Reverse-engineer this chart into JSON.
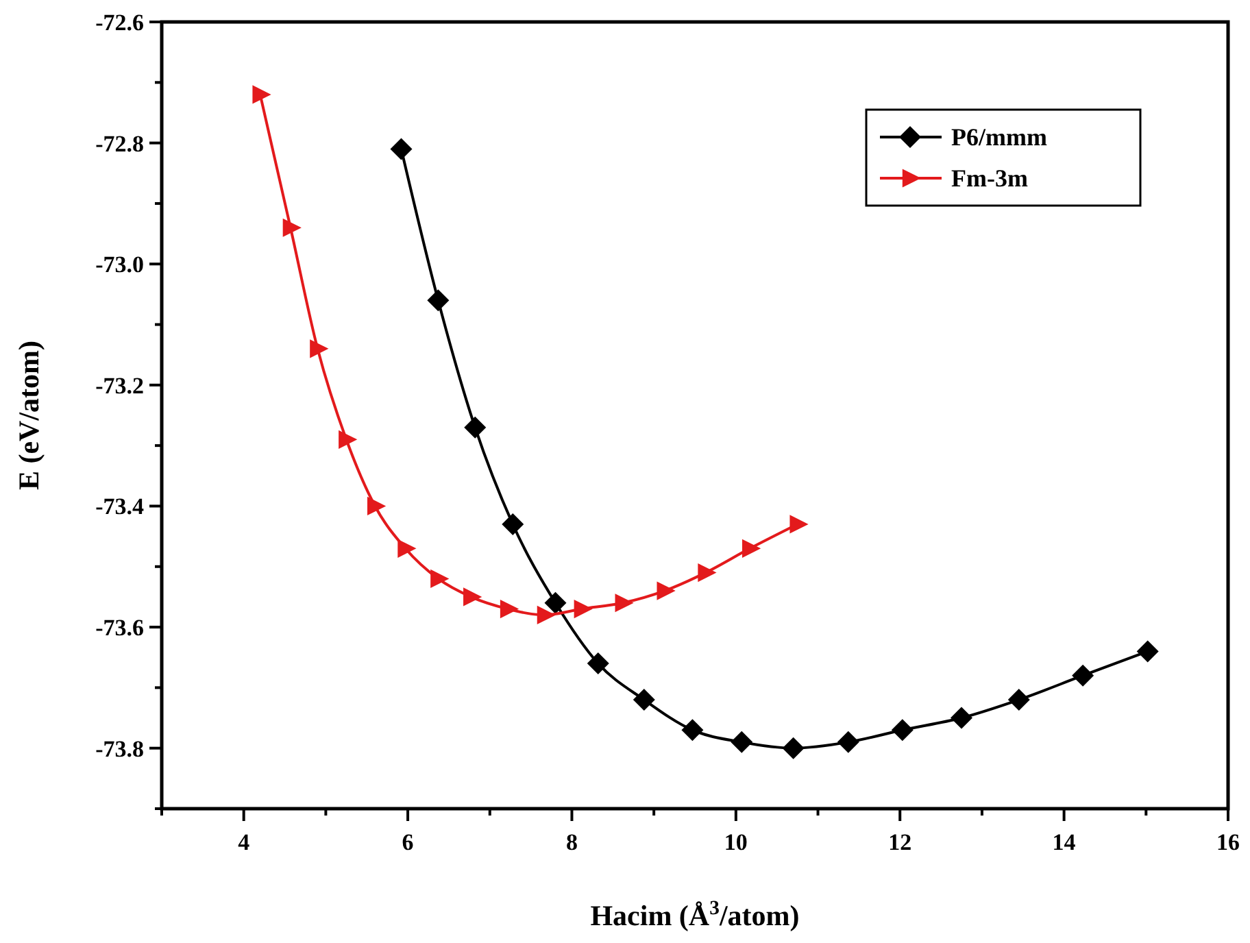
{
  "chart_data": {
    "type": "line",
    "xlabel": "Hacim (Å$^{3}$/atom)",
    "ylabel": "E (eV/atom)",
    "xlim": [
      3,
      16
    ],
    "xticks": [
      {
        "value": 3,
        "label": null
      },
      4,
      {
        "value": 5,
        "label": null
      },
      6,
      {
        "value": 7,
        "label": null
      },
      8,
      {
        "value": 9,
        "label": null
      },
      10,
      {
        "value": 11,
        "label": null
      },
      12,
      {
        "value": 13,
        "label": null
      },
      14,
      {
        "value": 15,
        "label": null
      },
      16
    ],
    "ylim": [
      -73.9,
      -72.6
    ],
    "yticks": [
      {
        "value": -73.9,
        "label": null
      },
      {
        "value": -73.8,
        "label": "-73.8"
      },
      {
        "value": -73.7,
        "label": null
      },
      {
        "value": -73.6,
        "label": "-73.6"
      },
      {
        "value": -73.5,
        "label": null
      },
      {
        "value": -73.4,
        "label": "-73.4"
      },
      {
        "value": -73.3,
        "label": null
      },
      {
        "value": -73.2,
        "label": "-73.2"
      },
      {
        "value": -73.1,
        "label": null
      },
      {
        "value": -73.0,
        "label": "-73.0"
      },
      {
        "value": -72.9,
        "label": null
      },
      {
        "value": -72.8,
        "label": "-72.8"
      },
      {
        "value": -72.7,
        "label": null
      },
      {
        "value": -72.6,
        "label": "-72.6"
      }
    ],
    "grid": false,
    "legend": "top right",
    "line_style": "solid",
    "series": [
      {
        "name": "P6/mmm",
        "color": "#000000",
        "marker": "diamond",
        "x": [
          5.92,
          6.37,
          6.82,
          7.28,
          7.8,
          8.32,
          8.88,
          9.47,
          10.07,
          10.7,
          11.37,
          12.03,
          12.75,
          13.45,
          14.23,
          15.02
        ],
        "values": [
          -72.81,
          -73.06,
          -73.27,
          -73.43,
          -73.56,
          -73.66,
          -73.72,
          -73.77,
          -73.79,
          -73.8,
          -73.79,
          -73.77,
          -73.75,
          -73.72,
          -73.68,
          -73.64
        ]
      },
      {
        "name": "Fm-3m",
        "color": "#e31a1c",
        "marker": "triangle",
        "x": [
          4.2,
          4.57,
          4.9,
          5.25,
          5.6,
          5.97,
          6.37,
          6.77,
          7.22,
          7.67,
          8.12,
          8.62,
          9.13,
          9.63,
          10.17,
          10.75
        ],
        "values": [
          -72.72,
          -72.94,
          -73.14,
          -73.29,
          -73.4,
          -73.47,
          -73.52,
          -73.55,
          -73.57,
          -73.58,
          -73.57,
          -73.56,
          -73.54,
          -73.51,
          -73.47,
          -73.43
        ]
      }
    ]
  }
}
